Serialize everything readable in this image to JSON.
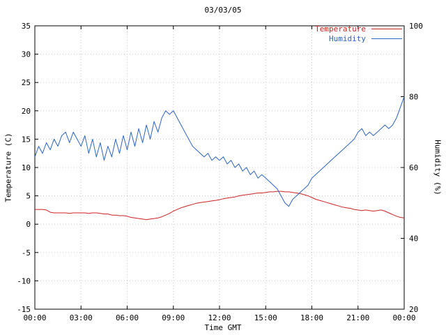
{
  "title": "03/03/05",
  "axes": {
    "left_label": "Temperature (C)",
    "right_label": "Humidity (%)",
    "x_label": "Time GMT",
    "x_ticks": [
      "00:00",
      "03:00",
      "06:00",
      "09:00",
      "12:00",
      "15:00",
      "18:00",
      "21:00",
      "00:00"
    ],
    "left_ticks": [
      -15,
      -10,
      -5,
      0,
      5,
      10,
      15,
      20,
      25,
      30,
      35
    ],
    "right_ticks": [
      20,
      40,
      60,
      80,
      100
    ]
  },
  "legend": [
    {
      "label": "Temperature",
      "color": "#cc2222"
    },
    {
      "label": "Humidity",
      "color": "#2b65c7"
    }
  ],
  "colors": {
    "temperature": "#cc2222",
    "humidity": "#2b65c7",
    "grid": "#c8c8c8",
    "border": "#000000",
    "background": "#ffffff"
  },
  "chart_data": {
    "type": "line",
    "title": "03/03/05",
    "xlabel": "Time GMT",
    "x_unit": "hours GMT",
    "x_range": [
      0,
      24
    ],
    "x_tick_interval_hours": 3,
    "x_step_minutes": 15,
    "grid": true,
    "legend_position": "top-right",
    "left_axis": {
      "label": "Temperature (C)",
      "range": [
        -15,
        35
      ],
      "tick_step": 5
    },
    "right_axis": {
      "label": "Humidity (%)",
      "range": [
        20,
        100
      ],
      "tick_step": 20
    },
    "series": [
      {
        "name": "Temperature",
        "axis": "left",
        "unit": "C",
        "color": "#cc2222",
        "values": [
          2.6,
          2.6,
          2.6,
          2.5,
          2.1,
          2.0,
          2.0,
          2.0,
          2.0,
          1.9,
          2.0,
          2.0,
          2.0,
          2.0,
          1.9,
          2.0,
          2.0,
          1.9,
          1.8,
          1.8,
          1.6,
          1.6,
          1.5,
          1.5,
          1.4,
          1.2,
          1.1,
          1.0,
          0.9,
          0.8,
          0.9,
          1.0,
          1.1,
          1.3,
          1.6,
          1.9,
          2.3,
          2.6,
          2.9,
          3.1,
          3.3,
          3.5,
          3.7,
          3.8,
          3.9,
          4.0,
          4.1,
          4.2,
          4.3,
          4.5,
          4.6,
          4.7,
          4.8,
          5.0,
          5.1,
          5.2,
          5.3,
          5.4,
          5.5,
          5.5,
          5.6,
          5.7,
          5.7,
          5.8,
          5.8,
          5.7,
          5.7,
          5.6,
          5.5,
          5.4,
          5.2,
          5.0,
          4.7,
          4.4,
          4.2,
          4.0,
          3.8,
          3.6,
          3.4,
          3.2,
          3.0,
          2.9,
          2.8,
          2.6,
          2.5,
          2.4,
          2.5,
          2.4,
          2.3,
          2.4,
          2.5,
          2.3,
          2.0,
          1.7,
          1.4,
          1.2,
          1.1
        ]
      },
      {
        "name": "Humidity",
        "axis": "right",
        "unit": "%",
        "color": "#2b65c7",
        "values": [
          63,
          66,
          64,
          67,
          65,
          68,
          66,
          69,
          70,
          67,
          70,
          68,
          66,
          69,
          64,
          68,
          63,
          67,
          62,
          66,
          63,
          68,
          64,
          69,
          65,
          70,
          66,
          71,
          67,
          72,
          68,
          73,
          70,
          74,
          76,
          75,
          76,
          74,
          72,
          70,
          68,
          66,
          65,
          64,
          63,
          64,
          62,
          63,
          62,
          63,
          61,
          62,
          60,
          61,
          59,
          60,
          58,
          59,
          57,
          58,
          57,
          56,
          55,
          54,
          52,
          50,
          49,
          51,
          52,
          53,
          54,
          55,
          57,
          58,
          59,
          60,
          61,
          62,
          63,
          64,
          65,
          66,
          67,
          68,
          70,
          71,
          69,
          70,
          69,
          70,
          71,
          72,
          71,
          72,
          74,
          77,
          80
        ]
      }
    ]
  }
}
